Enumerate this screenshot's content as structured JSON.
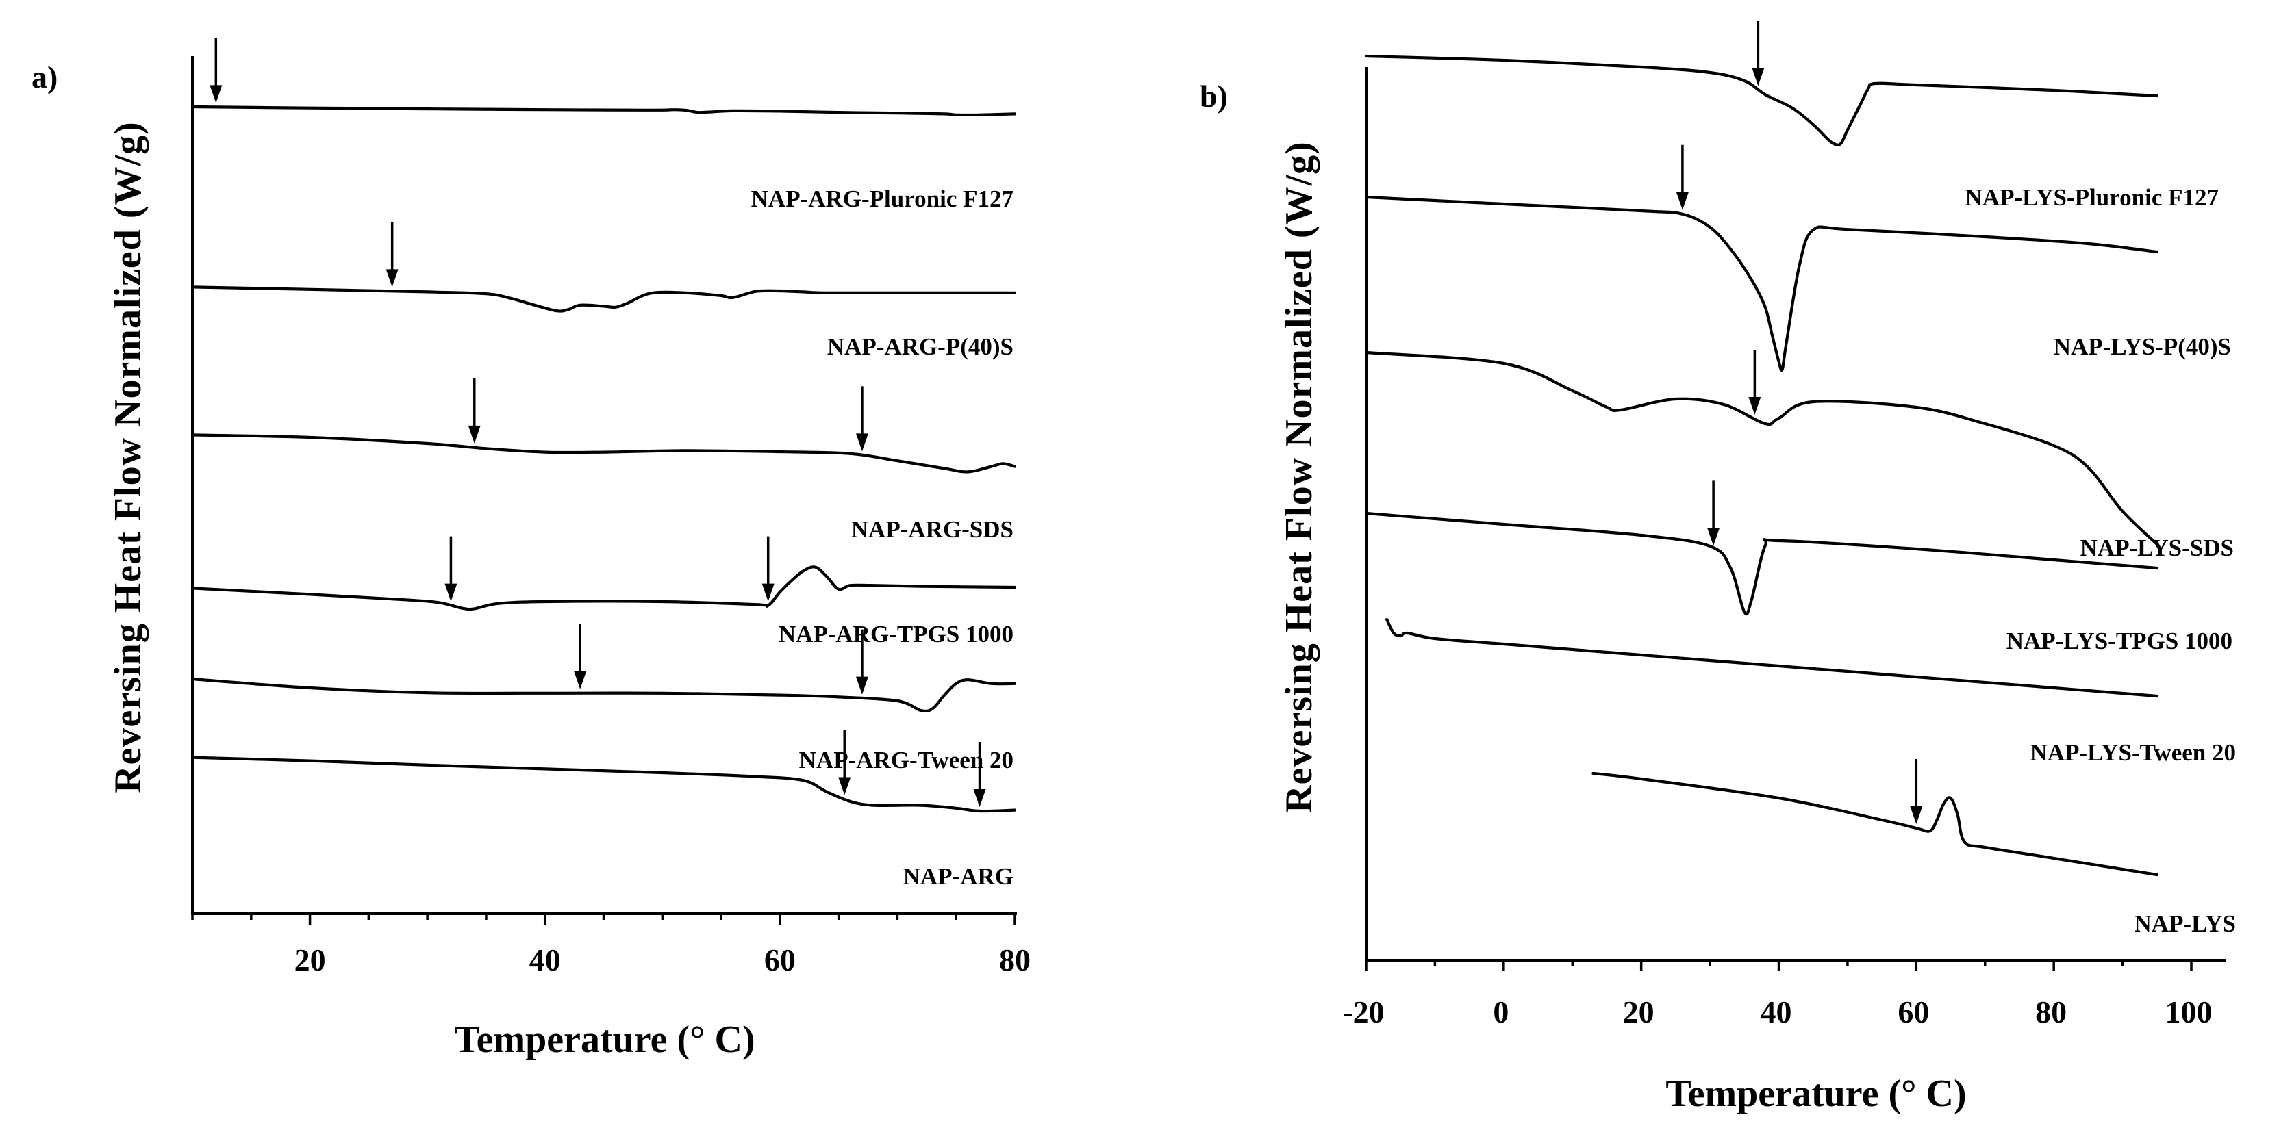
{
  "chart_data": [
    {
      "type": "line",
      "panel": "a)",
      "ylabel": "Reversing Heat Flow Normalized (W/g)",
      "xlabel": "Temperature (° C)",
      "xlim": [
        10,
        80
      ],
      "xticks": [
        20,
        40,
        60,
        80
      ],
      "series": [
        {
          "name": "NAP-ARG-Pluronic F127",
          "points": [
            [
              10,
              2.0
            ],
            [
              20,
              1.94
            ],
            [
              30,
              1.89
            ],
            [
              40,
              1.85
            ],
            [
              49,
              1.83
            ],
            [
              51,
              1.85
            ],
            [
              52,
              1.82
            ],
            [
              53,
              1.71
            ],
            [
              54,
              1.73
            ],
            [
              56,
              1.79
            ],
            [
              60,
              1.77
            ],
            [
              65,
              1.71
            ],
            [
              70,
              1.67
            ],
            [
              74,
              1.63
            ],
            [
              75,
              1.58
            ],
            [
              77,
              1.58
            ],
            [
              80,
              1.63
            ]
          ],
          "arrows": [
            12
          ]
        },
        {
          "name": "NAP-ARG-P(40)S",
          "points": [
            [
              10,
              1.27
            ],
            [
              20,
              1.15
            ],
            [
              30,
              1.02
            ],
            [
              35,
              0.92
            ],
            [
              37,
              0.7
            ],
            [
              39,
              0.35
            ],
            [
              41,
              0.03
            ],
            [
              42,
              0.1
            ],
            [
              43,
              0.33
            ],
            [
              45,
              0.27
            ],
            [
              46,
              0.22
            ],
            [
              47,
              0.42
            ],
            [
              49,
              0.95
            ],
            [
              52,
              0.97
            ],
            [
              55,
              0.82
            ],
            [
              56,
              0.72
            ],
            [
              58,
              1.05
            ],
            [
              60,
              1.07
            ],
            [
              62,
              1.02
            ],
            [
              64,
              0.97
            ],
            [
              70,
              0.97
            ],
            [
              80,
              0.97
            ]
          ],
          "arrows": [
            27
          ]
        },
        {
          "name": "NAP-ARG-SDS",
          "points": [
            [
              10,
              1.95
            ],
            [
              20,
              1.82
            ],
            [
              30,
              1.5
            ],
            [
              35,
              1.24
            ],
            [
              40,
              1.05
            ],
            [
              45,
              1.05
            ],
            [
              52,
              1.13
            ],
            [
              60,
              1.07
            ],
            [
              66,
              0.97
            ],
            [
              70,
              0.6
            ],
            [
              74,
              0.2
            ],
            [
              76,
              0.02
            ],
            [
              78,
              0.3
            ],
            [
              79,
              0.45
            ],
            [
              80,
              0.3
            ]
          ],
          "arrows": [
            34,
            67
          ]
        },
        {
          "name": "NAP-ARG-TPGS 1000",
          "points": [
            [
              10,
              1.2
            ],
            [
              20,
              0.88
            ],
            [
              28,
              0.6
            ],
            [
              31,
              0.45
            ],
            [
              33,
              0.15
            ],
            [
              34,
              0.13
            ],
            [
              36,
              0.4
            ],
            [
              40,
              0.5
            ],
            [
              50,
              0.5
            ],
            [
              58,
              0.35
            ],
            [
              59,
              0.3
            ],
            [
              60,
              1.0
            ],
            [
              61,
              1.6
            ],
            [
              62,
              2.1
            ],
            [
              63,
              2.3
            ],
            [
              64,
              1.8
            ],
            [
              65,
              1.15
            ],
            [
              66,
              1.35
            ],
            [
              68,
              1.35
            ],
            [
              72,
              1.3
            ],
            [
              80,
              1.25
            ]
          ],
          "arrows": [
            32,
            59
          ]
        },
        {
          "name": "NAP-ARG-Tween 20",
          "points": [
            [
              10,
              2.14
            ],
            [
              20,
              1.68
            ],
            [
              30,
              1.42
            ],
            [
              40,
              1.4
            ],
            [
              50,
              1.4
            ],
            [
              60,
              1.3
            ],
            [
              65,
              1.2
            ],
            [
              70,
              1.0
            ],
            [
              72,
              0.5
            ],
            [
              73,
              0.6
            ],
            [
              74,
              1.3
            ],
            [
              75,
              1.9
            ],
            [
              76,
              2.1
            ],
            [
              78,
              1.9
            ],
            [
              80,
              1.9
            ]
          ],
          "arrows": [
            43,
            67
          ]
        },
        {
          "name": "NAP-ARG",
          "points": [
            [
              10,
              2.8
            ],
            [
              20,
              2.62
            ],
            [
              30,
              2.4
            ],
            [
              40,
              2.2
            ],
            [
              50,
              2.0
            ],
            [
              58,
              1.8
            ],
            [
              62,
              1.6
            ],
            [
              64,
              1.0
            ],
            [
              66,
              0.5
            ],
            [
              68,
              0.3
            ],
            [
              72,
              0.3
            ],
            [
              75,
              0.15
            ],
            [
              77,
              0.0
            ],
            [
              80,
              0.05
            ]
          ],
          "arrows": [
            65.5,
            77
          ]
        }
      ]
    },
    {
      "type": "line",
      "panel": "b)",
      "ylabel": "Reversing Heat Flow Normalized (W/g)",
      "xlabel": "Temperature (° C)",
      "xlim": [
        -20,
        100
      ],
      "xticks": [
        -20,
        0,
        20,
        40,
        60,
        80,
        100
      ],
      "series": [
        {
          "name": "NAP-LYS-Pluronic F127",
          "points": [
            [
              -20,
              2.0
            ],
            [
              0,
              1.85
            ],
            [
              20,
              1.6
            ],
            [
              30,
              1.4
            ],
            [
              35,
              1.1
            ],
            [
              38,
              0.6
            ],
            [
              42,
              0.1
            ],
            [
              45,
              -0.5
            ],
            [
              47,
              -1.0
            ],
            [
              48,
              -1.2
            ],
            [
              49,
              -1.2
            ],
            [
              50,
              -0.7
            ],
            [
              52,
              0.3
            ],
            [
              53,
              0.8
            ],
            [
              54,
              1.0
            ],
            [
              60,
              0.95
            ],
            [
              80,
              0.75
            ],
            [
              95,
              0.55
            ]
          ],
          "arrows": [
            37
          ]
        },
        {
          "name": "NAP-LYS-P(40)S",
          "points": [
            [
              -20,
              2.0
            ],
            [
              0,
              1.75
            ],
            [
              20,
              1.5
            ],
            [
              26,
              1.38
            ],
            [
              30,
              0.9
            ],
            [
              33,
              0.1
            ],
            [
              36,
              -1.0
            ],
            [
              38,
              -2.0
            ],
            [
              39,
              -3.0
            ],
            [
              40,
              -4.0
            ],
            [
              40.5,
              -4.3
            ],
            [
              41,
              -3.5
            ],
            [
              43,
              -0.5
            ],
            [
              45,
              0.8
            ],
            [
              50,
              0.82
            ],
            [
              70,
              0.55
            ],
            [
              85,
              0.3
            ],
            [
              95,
              0.0
            ]
          ],
          "arrows": [
            26
          ]
        },
        {
          "name": "NAP-LYS-SDS",
          "points": [
            [
              -20,
              2.0
            ],
            [
              0,
              1.6
            ],
            [
              10,
              0.6
            ],
            [
              15,
              0.0
            ],
            [
              17,
              -0.1
            ],
            [
              25,
              0.3
            ],
            [
              32,
              0.1
            ],
            [
              38,
              -0.6
            ],
            [
              40,
              -0.4
            ],
            [
              45,
              0.2
            ],
            [
              60,
              0.0
            ],
            [
              70,
              -0.6
            ],
            [
              80,
              -1.4
            ],
            [
              85,
              -2.2
            ],
            [
              90,
              -3.8
            ],
            [
              95,
              -5.0
            ]
          ],
          "arrows": [
            36.5
          ]
        },
        {
          "name": "NAP-LYS-TPGS 1000",
          "points": [
            [
              -20,
              2.0
            ],
            [
              0,
              1.6
            ],
            [
              20,
              1.2
            ],
            [
              30,
              0.8
            ],
            [
              33,
              0.0
            ],
            [
              35,
              -1.6
            ],
            [
              36,
              -1.2
            ],
            [
              38,
              0.8
            ],
            [
              40,
              1.0
            ],
            [
              60,
              0.7
            ],
            [
              80,
              0.3
            ],
            [
              95,
              0.0
            ]
          ],
          "arrows": [
            30.5
          ]
        },
        {
          "name": "NAP-LYS-Tween 20",
          "points": [
            [
              -17,
              2.5
            ],
            [
              -16,
              2.0
            ],
            [
              -15,
              1.9
            ],
            [
              -14,
              2.0
            ],
            [
              -10,
              1.8
            ],
            [
              0,
              1.6
            ],
            [
              20,
              1.2
            ],
            [
              40,
              0.8
            ],
            [
              60,
              0.4
            ],
            [
              80,
              0.0
            ],
            [
              95,
              -0.3
            ]
          ],
          "arrows": []
        },
        {
          "name": "NAP-LYS",
          "points": [
            [
              13,
              2.5
            ],
            [
              20,
              2.3
            ],
            [
              40,
              1.6
            ],
            [
              55,
              0.8
            ],
            [
              60,
              0.5
            ],
            [
              62,
              0.4
            ],
            [
              63,
              0.8
            ],
            [
              64,
              1.4
            ],
            [
              65,
              1.6
            ],
            [
              66,
              1.0
            ],
            [
              67,
              0.0
            ],
            [
              70,
              -0.2
            ],
            [
              80,
              -0.6
            ],
            [
              95,
              -1.2
            ]
          ],
          "arrows": [
            60
          ]
        }
      ]
    }
  ]
}
